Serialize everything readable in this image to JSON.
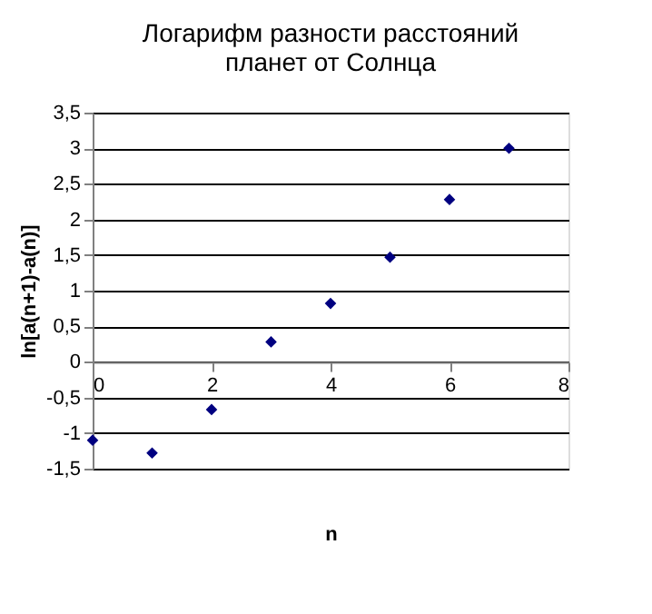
{
  "chart_data": {
    "type": "scatter",
    "title": "Логарифм разности расстояний планет от Солнца",
    "xlabel": "n",
    "ylabel": "ln[a(n+1)-a(n)]",
    "x": [
      0,
      1,
      2,
      3,
      4,
      5,
      6,
      7
    ],
    "series": [
      {
        "color": "#000080",
        "values": [
          -1.1,
          -1.28,
          -0.67,
          0.28,
          0.82,
          1.47,
          2.28,
          3.0
        ]
      }
    ],
    "xlim": [
      0,
      8
    ],
    "xticks": [
      0,
      2,
      4,
      6,
      8
    ],
    "ylim": [
      -1.5,
      3.5
    ],
    "yticks": [
      {
        "value": -1.5,
        "label": "-1,5"
      },
      -1,
      {
        "value": -0.5,
        "label": "-0,5"
      },
      0,
      {
        "value": 0.5,
        "label": "0,5"
      },
      1,
      {
        "value": 1.5,
        "label": "1,5"
      },
      2,
      {
        "value": 2.5,
        "label": "2,5"
      },
      3,
      {
        "value": 3.5,
        "label": "3,5"
      }
    ],
    "grid": "y",
    "marker": "diamond"
  }
}
